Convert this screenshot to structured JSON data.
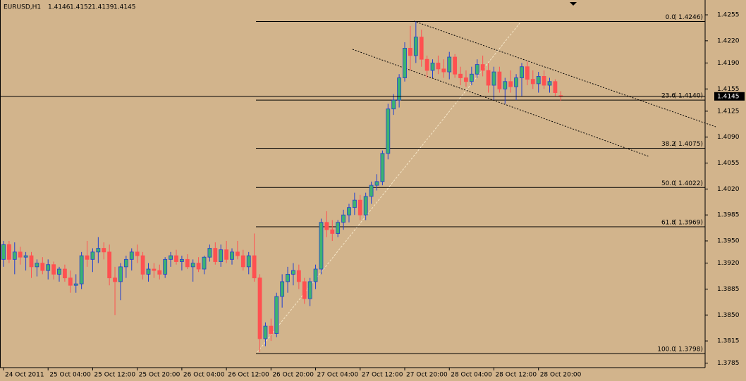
{
  "chart_data": {
    "type": "candlestick",
    "title": "EURUSD,H1",
    "up_color": "#3cb371",
    "up_edge": "#1f3fd0",
    "down_color": "#ff5050",
    "categories": [
      "24 Oct 2011",
      null,
      null,
      null,
      null,
      null,
      null,
      null,
      "25 Oct 04:00",
      null,
      null,
      null,
      null,
      null,
      null,
      null,
      "25 Oct 12:00",
      null,
      null,
      null,
      null,
      null,
      null,
      null,
      "25 Oct 20:00",
      null,
      null,
      null,
      null,
      null,
      null,
      null,
      "26 Oct 04:00",
      null,
      null,
      null,
      null,
      null,
      null,
      null,
      "26 Oct 12:00",
      null,
      null,
      null,
      null,
      null,
      null,
      null,
      "26 Oct 20:00",
      null,
      null,
      null,
      null,
      null,
      null,
      null,
      "27 Oct 04:00",
      null,
      null,
      null,
      null,
      null,
      null,
      null,
      "27 Oct 12:00",
      null,
      null,
      null,
      null,
      null,
      null,
      null,
      "27 Oct 20:00",
      null,
      null,
      null,
      null,
      null,
      null,
      null,
      "28 Oct 04:00",
      null,
      null,
      null,
      null,
      null,
      null,
      null,
      "28 Oct 12:00",
      null,
      null,
      null,
      null,
      null,
      null,
      null,
      "28 Oct 20:00",
      null,
      null,
      null,
      null
    ],
    "open": [
      1.3925,
      1.3945,
      1.3925,
      1.3935,
      1.3928,
      1.393,
      1.3915,
      1.392,
      1.391,
      1.3918,
      1.3905,
      1.3912,
      1.39,
      1.389,
      1.3892,
      1.393,
      1.3925,
      1.3935,
      1.394,
      1.3935,
      1.39,
      1.3895,
      1.3915,
      1.3925,
      1.3935,
      1.393,
      1.3905,
      1.3912,
      1.391,
      1.3905,
      1.3925,
      1.393,
      1.3922,
      1.3925,
      1.3915,
      1.392,
      1.3912,
      1.3928,
      1.394,
      1.3922,
      1.3938,
      1.3925,
      1.3935,
      1.393,
      1.3915,
      1.393,
      1.39,
      1.3818,
      1.3835,
      1.3825,
      1.3875,
      1.3895,
      1.3905,
      1.391,
      1.3895,
      1.3872,
      1.3895,
      1.3912,
      1.3975,
      1.3965,
      1.396,
      1.3975,
      1.3985,
      1.3995,
      1.4005,
      1.3985,
      1.401,
      1.4025,
      1.403,
      1.4068,
      1.4128,
      1.414,
      1.417,
      1.421,
      1.42,
      1.4225,
      1.4195,
      1.418,
      1.419,
      1.4182,
      1.4178,
      1.4198,
      1.4175,
      1.417,
      1.4165,
      1.4175,
      1.4188,
      1.418,
      1.416,
      1.4178,
      1.4155,
      1.4165,
      1.4158,
      1.417,
      1.4185,
      1.4168,
      1.4162,
      1.4172,
      1.416,
      1.4165,
      1.4146
    ],
    "high": [
      1.395,
      1.395,
      1.3948,
      1.3942,
      1.3935,
      1.3935,
      1.3925,
      1.3928,
      1.3925,
      1.3922,
      1.3915,
      1.3918,
      1.391,
      1.3905,
      1.3935,
      1.395,
      1.394,
      1.3955,
      1.3948,
      1.3945,
      1.3915,
      1.392,
      1.393,
      1.394,
      1.3945,
      1.3935,
      1.392,
      1.392,
      1.3918,
      1.3928,
      1.3935,
      1.3938,
      1.393,
      1.3932,
      1.3925,
      1.3928,
      1.393,
      1.3945,
      1.3948,
      1.3945,
      1.395,
      1.394,
      1.395,
      1.3938,
      1.3935,
      1.396,
      1.3905,
      1.384,
      1.3845,
      1.388,
      1.3905,
      1.3915,
      1.392,
      1.3918,
      1.39,
      1.39,
      1.3918,
      1.398,
      1.399,
      1.3978,
      1.3978,
      1.3992,
      1.4,
      1.4015,
      1.4012,
      1.4015,
      1.403,
      1.404,
      1.4072,
      1.4135,
      1.4148,
      1.4175,
      1.4218,
      1.424,
      1.4246,
      1.4235,
      1.42,
      1.4195,
      1.42,
      1.4195,
      1.4205,
      1.4202,
      1.4185,
      1.418,
      1.4185,
      1.4195,
      1.42,
      1.419,
      1.4185,
      1.4185,
      1.417,
      1.418,
      1.4175,
      1.419,
      1.4192,
      1.418,
      1.4178,
      1.418,
      1.417,
      1.4168,
      1.4152
    ],
    "low": [
      1.3915,
      1.392,
      1.3905,
      1.3918,
      1.391,
      1.39,
      1.3902,
      1.3905,
      1.3898,
      1.3898,
      1.3895,
      1.3895,
      1.388,
      1.388,
      1.3885,
      1.3915,
      1.3908,
      1.392,
      1.3925,
      1.389,
      1.385,
      1.387,
      1.39,
      1.391,
      1.392,
      1.3898,
      1.3895,
      1.39,
      1.3898,
      1.39,
      1.3915,
      1.3918,
      1.391,
      1.3912,
      1.3895,
      1.3908,
      1.3905,
      1.3922,
      1.3918,
      1.3915,
      1.392,
      1.3918,
      1.3925,
      1.391,
      1.3905,
      1.3895,
      1.38,
      1.3808,
      1.3815,
      1.382,
      1.386,
      1.388,
      1.389,
      1.3885,
      1.3865,
      1.3862,
      1.3885,
      1.3905,
      1.3955,
      1.395,
      1.3955,
      1.3965,
      1.3975,
      1.3985,
      1.3978,
      1.3978,
      1.4,
      1.4018,
      1.4025,
      1.406,
      1.412,
      1.413,
      1.4165,
      1.418,
      1.419,
      1.4185,
      1.417,
      1.417,
      1.4175,
      1.417,
      1.4168,
      1.417,
      1.416,
      1.4158,
      1.416,
      1.417,
      1.4172,
      1.415,
      1.414,
      1.415,
      1.4135,
      1.415,
      1.414,
      1.4145,
      1.416,
      1.4155,
      1.415,
      1.4155,
      1.415,
      1.4145,
      1.4139
    ],
    "close": [
      1.3945,
      1.3925,
      1.3935,
      1.3928,
      1.393,
      1.3915,
      1.392,
      1.391,
      1.3918,
      1.3905,
      1.3912,
      1.39,
      1.389,
      1.3892,
      1.393,
      1.3925,
      1.3935,
      1.394,
      1.3935,
      1.39,
      1.3895,
      1.3915,
      1.3925,
      1.3935,
      1.393,
      1.3905,
      1.3912,
      1.391,
      1.3905,
      1.3925,
      1.393,
      1.3922,
      1.3925,
      1.3915,
      1.392,
      1.3912,
      1.3928,
      1.394,
      1.3922,
      1.3938,
      1.3925,
      1.3935,
      1.393,
      1.3915,
      1.393,
      1.39,
      1.3818,
      1.3835,
      1.3825,
      1.3875,
      1.3895,
      1.3905,
      1.391,
      1.3895,
      1.3872,
      1.3895,
      1.3912,
      1.3975,
      1.3965,
      1.396,
      1.3975,
      1.3985,
      1.3995,
      1.4005,
      1.3985,
      1.401,
      1.4025,
      1.403,
      1.4068,
      1.4128,
      1.414,
      1.417,
      1.421,
      1.42,
      1.4225,
      1.4195,
      1.418,
      1.419,
      1.4182,
      1.4178,
      1.4198,
      1.4175,
      1.417,
      1.4165,
      1.4175,
      1.4188,
      1.418,
      1.416,
      1.4178,
      1.4155,
      1.4165,
      1.4158,
      1.417,
      1.4185,
      1.4168,
      1.4162,
      1.4172,
      1.416,
      1.4165,
      1.415,
      1.4145
    ],
    "xlim": [
      -0.63,
      125.9
    ],
    "ylim": [
      1.3779,
      1.4275
    ],
    "yticks": [
      1.4255,
      {
        "value": 1.422,
        "label": "1.4220"
      },
      {
        "value": 1.419,
        "label": "1.4190"
      },
      1.4155,
      1.4125,
      {
        "value": 1.409,
        "label": "1.4090"
      },
      1.4055,
      {
        "value": 1.402,
        "label": "1.4020"
      },
      1.3985,
      {
        "value": 1.395,
        "label": "1.3950"
      },
      {
        "value": 1.392,
        "label": "1.3920"
      },
      1.3885,
      {
        "value": 1.385,
        "label": "1.3850"
      },
      1.3815,
      1.3785
    ],
    "fib_levels": [
      {
        "level": {
          "value": 0,
          "label": "0.0"
        },
        "price": {
          "value": 1.4246,
          "label": "( 1.4246)"
        }
      },
      {
        "level": 23.6,
        "price": {
          "value": 1.414,
          "label": "( 1.4140)"
        }
      },
      {
        "level": 38.2,
        "price": {
          "value": 1.4075,
          "label": "( 1.4075)"
        }
      },
      {
        "level": {
          "value": 50,
          "label": "50.0"
        },
        "price": {
          "value": 1.4022,
          "label": "( 1.4022)"
        }
      },
      {
        "level": 61.8,
        "price": {
          "value": 1.3969,
          "label": "( 1.3969)"
        }
      },
      {
        "level": {
          "value": 100,
          "label": "100.0"
        },
        "price": {
          "value": 1.3798,
          "label": "( 1.3798)"
        }
      }
    ]
  }
}
